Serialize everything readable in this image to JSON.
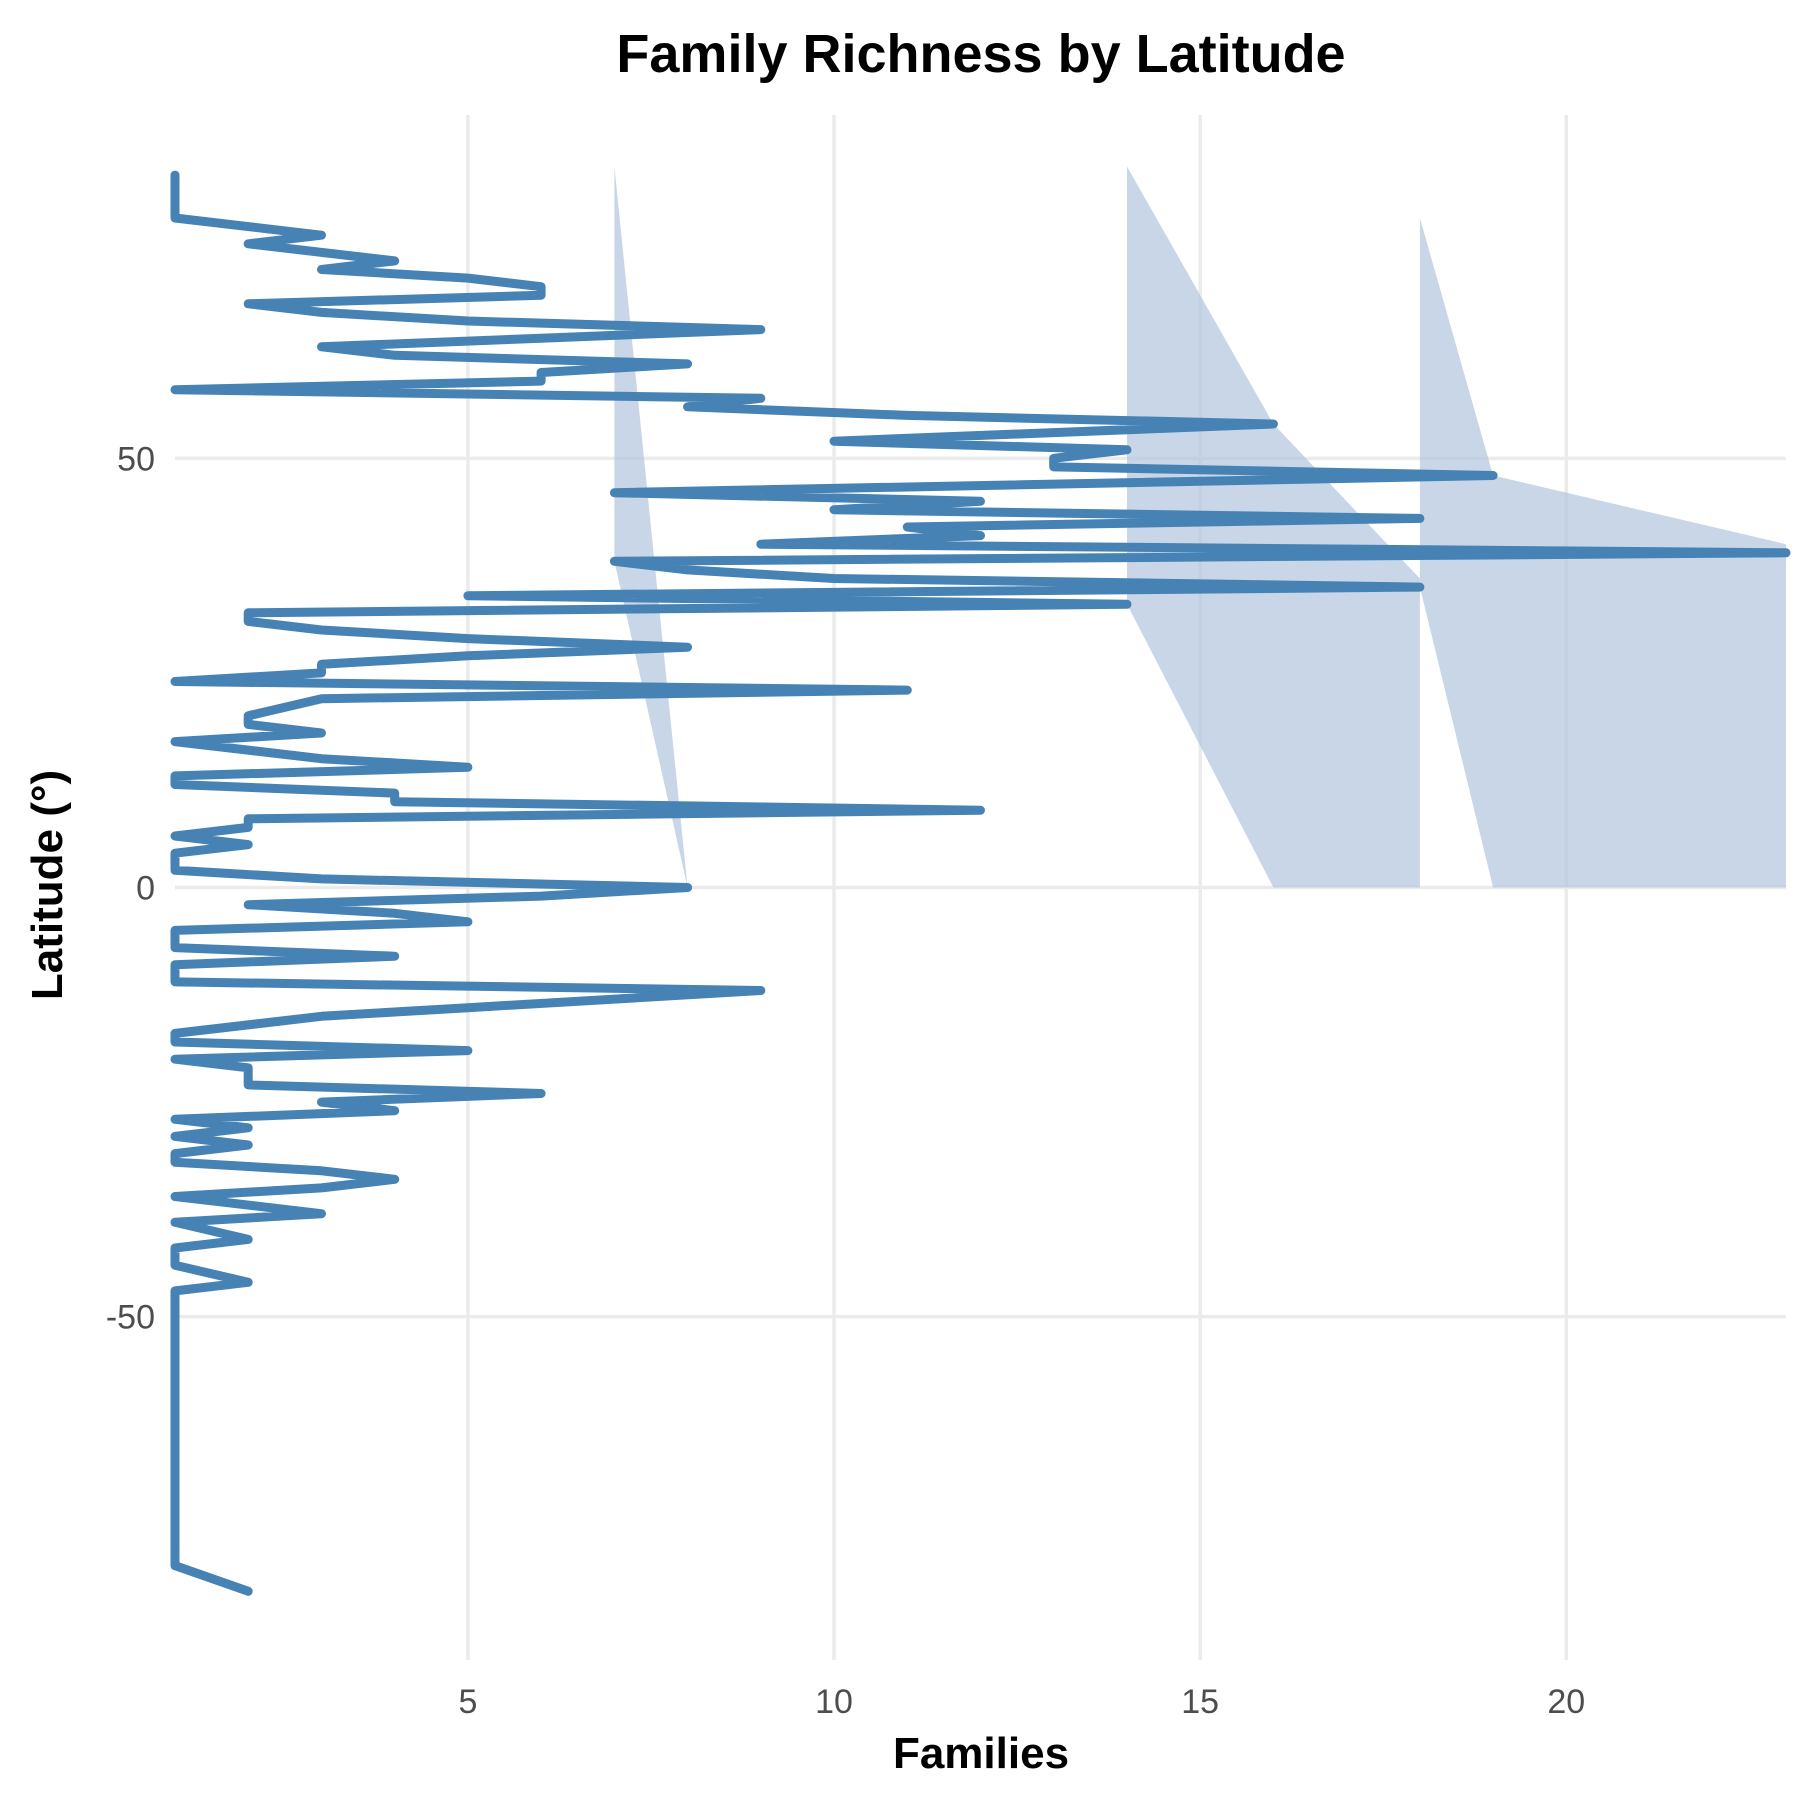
{
  "chart_data": {
    "type": "line",
    "title": "Family Richness by Latitude",
    "xlabel": "Families",
    "ylabel": "Latitude (°)",
    "xlim": [
      1,
      23
    ],
    "ylim": [
      -90,
      90
    ],
    "x_ticks": [
      5,
      10,
      15,
      20
    ],
    "y_ticks": [
      -50,
      0,
      50
    ],
    "grid": true,
    "line_color": "#4682B4",
    "band_color": "#B0C4DE",
    "series": [
      {
        "values": [
          {
            "lat": 83,
            "families": 1
          },
          {
            "lat": 78,
            "families": 1
          },
          {
            "lat": 76,
            "families": 3
          },
          {
            "lat": 75,
            "families": 2
          },
          {
            "lat": 73,
            "families": 4
          },
          {
            "lat": 72,
            "families": 3
          },
          {
            "lat": 71,
            "families": 5
          },
          {
            "lat": 70,
            "families": 6
          },
          {
            "lat": 69,
            "families": 6
          },
          {
            "lat": 68,
            "families": 2
          },
          {
            "lat": 67,
            "families": 3
          },
          {
            "lat": 66,
            "families": 5
          },
          {
            "lat": 65,
            "families": 9
          },
          {
            "lat": 64,
            "families": 6
          },
          {
            "lat": 63,
            "families": 3
          },
          {
            "lat": 62,
            "families": 4
          },
          {
            "lat": 61,
            "families": 8
          },
          {
            "lat": 60,
            "families": 6
          },
          {
            "lat": 59,
            "families": 6
          },
          {
            "lat": 58,
            "families": 1
          },
          {
            "lat": 57,
            "families": 9
          },
          {
            "lat": 56,
            "families": 8
          },
          {
            "lat": 55,
            "families": 11
          },
          {
            "lat": 54,
            "families": 16
          },
          {
            "lat": 53,
            "families": 13
          },
          {
            "lat": 52,
            "families": 10
          },
          {
            "lat": 51,
            "families": 14
          },
          {
            "lat": 50,
            "families": 13
          },
          {
            "lat": 49,
            "families": 13
          },
          {
            "lat": 48,
            "families": 19
          },
          {
            "lat": 46,
            "families": 7
          },
          {
            "lat": 45,
            "families": 12
          },
          {
            "lat": 44,
            "families": 10
          },
          {
            "lat": 43,
            "families": 18
          },
          {
            "lat": 42,
            "families": 11
          },
          {
            "lat": 41,
            "families": 12
          },
          {
            "lat": 40,
            "families": 9
          },
          {
            "lat": 39,
            "families": 23
          },
          {
            "lat": 38,
            "families": 7
          },
          {
            "lat": 37,
            "families": 8
          },
          {
            "lat": 36,
            "families": 10
          },
          {
            "lat": 35,
            "families": 18
          },
          {
            "lat": 34,
            "families": 5
          },
          {
            "lat": 33,
            "families": 14
          },
          {
            "lat": 32,
            "families": 2
          },
          {
            "lat": 31,
            "families": 2
          },
          {
            "lat": 30,
            "families": 3
          },
          {
            "lat": 29,
            "families": 5
          },
          {
            "lat": 28,
            "families": 8
          },
          {
            "lat": 27,
            "families": 5
          },
          {
            "lat": 26,
            "families": 3
          },
          {
            "lat": 25,
            "families": 3
          },
          {
            "lat": 24,
            "families": 1
          },
          {
            "lat": 23,
            "families": 11
          },
          {
            "lat": 22,
            "families": 3
          },
          {
            "lat": 20,
            "families": 2
          },
          {
            "lat": 19,
            "families": 2
          },
          {
            "lat": 18,
            "families": 3
          },
          {
            "lat": 17,
            "families": 1
          },
          {
            "lat": 15,
            "families": 3
          },
          {
            "lat": 14,
            "families": 5
          },
          {
            "lat": 13,
            "families": 1
          },
          {
            "lat": 12,
            "families": 1
          },
          {
            "lat": 11,
            "families": 4
          },
          {
            "lat": 10,
            "families": 4
          },
          {
            "lat": 9,
            "families": 12
          },
          {
            "lat": 8,
            "families": 2
          },
          {
            "lat": 7,
            "families": 2
          },
          {
            "lat": 6,
            "families": 1
          },
          {
            "lat": 5,
            "families": 2
          },
          {
            "lat": 4,
            "families": 1
          },
          {
            "lat": 3,
            "families": 1
          },
          {
            "lat": 2,
            "families": 1
          },
          {
            "lat": 1,
            "families": 3
          },
          {
            "lat": 0,
            "families": 8
          },
          {
            "lat": -1,
            "families": 6
          },
          {
            "lat": -2,
            "families": 2
          },
          {
            "lat": -3,
            "families": 4
          },
          {
            "lat": -4,
            "families": 5
          },
          {
            "lat": -5,
            "families": 1
          },
          {
            "lat": -6,
            "families": 1
          },
          {
            "lat": -7,
            "families": 1
          },
          {
            "lat": -8,
            "families": 4
          },
          {
            "lat": -9,
            "families": 1
          },
          {
            "lat": -10,
            "families": 1
          },
          {
            "lat": -11,
            "families": 1
          },
          {
            "lat": -12,
            "families": 9
          },
          {
            "lat": -14,
            "families": 5
          },
          {
            "lat": -15,
            "families": 3
          },
          {
            "lat": -17,
            "families": 1
          },
          {
            "lat": -18,
            "families": 1
          },
          {
            "lat": -19,
            "families": 5
          },
          {
            "lat": -20,
            "families": 1
          },
          {
            "lat": -21,
            "families": 2
          },
          {
            "lat": -22,
            "families": 2
          },
          {
            "lat": -23,
            "families": 2
          },
          {
            "lat": -24,
            "families": 6
          },
          {
            "lat": -25,
            "families": 3
          },
          {
            "lat": -26,
            "families": 4
          },
          {
            "lat": -27,
            "families": 1
          },
          {
            "lat": -28,
            "families": 2
          },
          {
            "lat": -29,
            "families": 1
          },
          {
            "lat": -30,
            "families": 2
          },
          {
            "lat": -31,
            "families": 1
          },
          {
            "lat": -32,
            "families": 1
          },
          {
            "lat": -33,
            "families": 3
          },
          {
            "lat": -34,
            "families": 4
          },
          {
            "lat": -35,
            "families": 3
          },
          {
            "lat": -36,
            "families": 1
          },
          {
            "lat": -38,
            "families": 3
          },
          {
            "lat": -39,
            "families": 1
          },
          {
            "lat": -41,
            "families": 2
          },
          {
            "lat": -42,
            "families": 1
          },
          {
            "lat": -44,
            "families": 1
          },
          {
            "lat": -46,
            "families": 2
          },
          {
            "lat": -47,
            "families": 1
          },
          {
            "lat": -49,
            "families": 1
          },
          {
            "lat": -79,
            "families": 1
          },
          {
            "lat": -82,
            "families": 2
          }
        ]
      }
    ],
    "bands": [
      {
        "points": [
          [
            7,
            84
          ],
          [
            8,
            0
          ],
          [
            7,
            38
          ]
        ]
      },
      {
        "points": [
          [
            14,
            84
          ],
          [
            16,
            54
          ],
          [
            18,
            36
          ],
          [
            18,
            0
          ],
          [
            16,
            0
          ],
          [
            14,
            33
          ]
        ]
      },
      {
        "points": [
          [
            18,
            78
          ],
          [
            19,
            48
          ],
          [
            23,
            40
          ],
          [
            23,
            0
          ],
          [
            19,
            0
          ],
          [
            18,
            35
          ]
        ]
      }
    ]
  }
}
